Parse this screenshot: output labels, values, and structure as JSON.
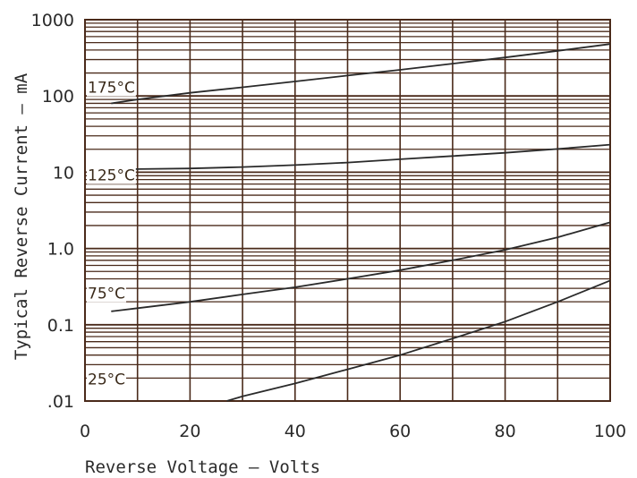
{
  "chart_data": {
    "type": "line",
    "title": "",
    "xlabel": "Reverse Voltage — Volts",
    "ylabel": "Typical Reverse Current — mA",
    "xlim": [
      0,
      100
    ],
    "ylim": [
      0.01,
      1000
    ],
    "yscale": "log",
    "grid": true,
    "x_ticks": [
      "0",
      "20",
      "40",
      "60",
      "80",
      "100"
    ],
    "y_ticks": [
      {
        "value": 0.01,
        "label": ".01"
      },
      {
        "value": 0.1,
        "label": "0.1"
      },
      {
        "value": 1,
        "label": "1.0"
      },
      {
        "value": 10,
        "label": "10"
      },
      {
        "value": 100,
        "label": "100"
      },
      {
        "value": 1000,
        "label": "1000"
      }
    ],
    "series": [
      {
        "name": "175°C",
        "x": [
          5,
          10,
          20,
          30,
          40,
          50,
          60,
          70,
          80,
          90,
          100
        ],
        "y": [
          80,
          90,
          110,
          130,
          155,
          185,
          220,
          265,
          320,
          390,
          480
        ]
      },
      {
        "name": "125°C",
        "x": [
          5,
          10,
          20,
          30,
          40,
          50,
          60,
          70,
          80,
          90,
          100
        ],
        "y": [
          11,
          11,
          11.2,
          11.7,
          12.4,
          13.4,
          14.8,
          16.3,
          18,
          20.2,
          23
        ]
      },
      {
        "name": "75°C",
        "x": [
          5,
          10,
          20,
          30,
          40,
          50,
          60,
          70,
          80,
          90,
          100
        ],
        "y": [
          0.15,
          0.165,
          0.2,
          0.25,
          0.31,
          0.4,
          0.52,
          0.7,
          0.96,
          1.4,
          2.2
        ]
      },
      {
        "name": "25°C",
        "x": [
          27,
          30,
          40,
          50,
          60,
          70,
          80,
          90,
          100
        ],
        "y": [
          0.01,
          0.0115,
          0.017,
          0.026,
          0.04,
          0.066,
          0.11,
          0.2,
          0.38
        ]
      }
    ]
  },
  "colors": {
    "grid": "#4a2a1a",
    "curve": "#2a2a2a",
    "text": "#2a2a2a"
  }
}
